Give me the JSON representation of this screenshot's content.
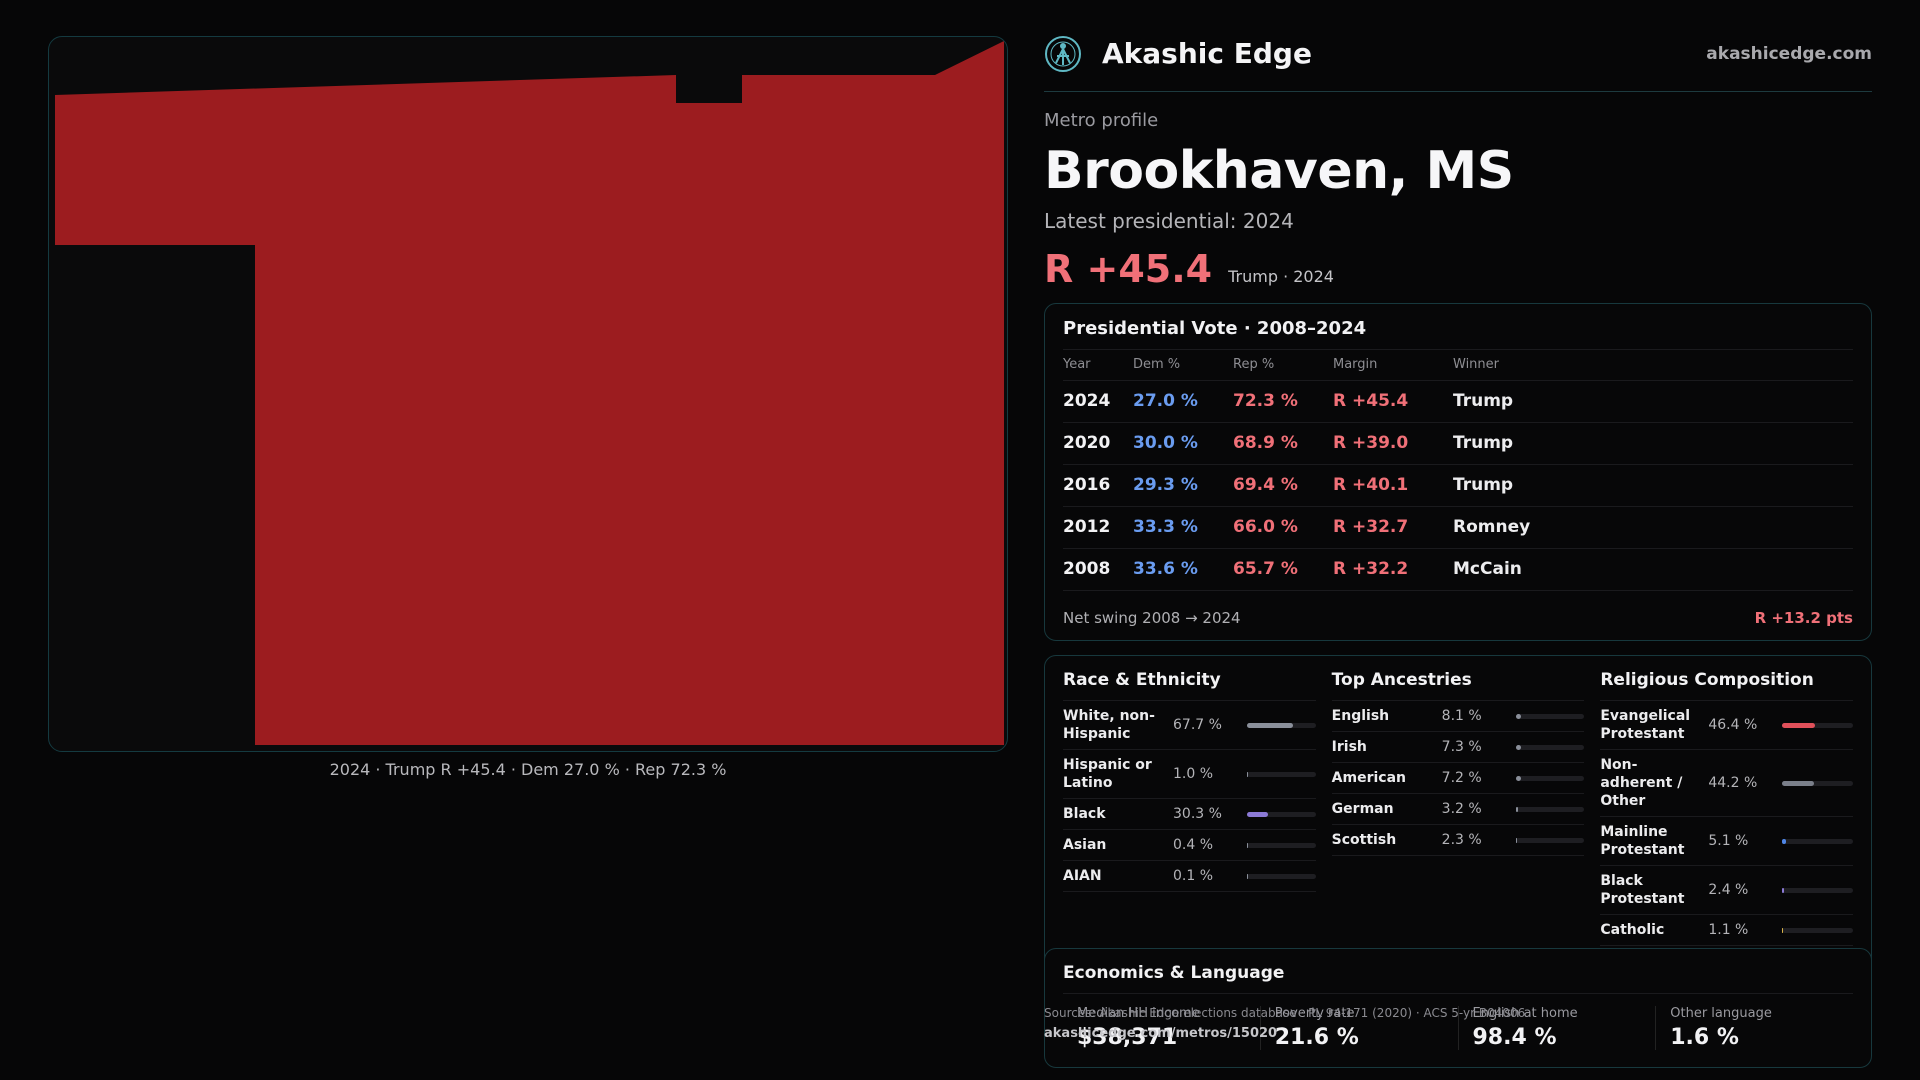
{
  "brand": {
    "name": "Akashic Edge",
    "site": "akashicedge.com"
  },
  "profile": {
    "eyebrow": "Metro profile",
    "title": "Brookhaven, MS",
    "latest_label": "Latest presidential: 2024",
    "margin": "R +45.4",
    "margin_sub": "Trump · 2024"
  },
  "map": {
    "caption": "2024 · Trump R +45.4 · Dem 27.0 % · Rep 72.3 %",
    "fill_color": "#9c1c1f"
  },
  "presidential": {
    "title": "Presidential Vote · 2008–2024",
    "headers": [
      "Year",
      "Dem %",
      "Rep %",
      "Margin",
      "Winner"
    ],
    "rows": [
      {
        "year": "2024",
        "dem": "27.0 %",
        "rep": "72.3 %",
        "margin": "R +45.4",
        "winner": "Trump"
      },
      {
        "year": "2020",
        "dem": "30.0 %",
        "rep": "68.9 %",
        "margin": "R +39.0",
        "winner": "Trump"
      },
      {
        "year": "2016",
        "dem": "29.3 %",
        "rep": "69.4 %",
        "margin": "R +40.1",
        "winner": "Trump"
      },
      {
        "year": "2012",
        "dem": "33.3 %",
        "rep": "66.0 %",
        "margin": "R +32.7",
        "winner": "Romney"
      },
      {
        "year": "2008",
        "dem": "33.6 %",
        "rep": "65.7 %",
        "margin": "R +32.2",
        "winner": "McCain"
      }
    ],
    "swing_label": "Net swing 2008 → 2024",
    "swing_value": "R +13.2 pts"
  },
  "race": {
    "title": "Race & Ethnicity",
    "items": [
      {
        "label": "White, non-Hispanic",
        "pct": "67.7 %",
        "value": 67.7,
        "color": "#8a8f9a"
      },
      {
        "label": "Hispanic or Latino",
        "pct": "1.0 %",
        "value": 1.0,
        "color": "#8a8f9a"
      },
      {
        "label": "Black",
        "pct": "30.3 %",
        "value": 30.3,
        "color": "#8c7ad6"
      },
      {
        "label": "Asian",
        "pct": "0.4 %",
        "value": 0.4,
        "color": "#8a8f9a"
      },
      {
        "label": "AIAN",
        "pct": "0.1 %",
        "value": 0.1,
        "color": "#8a8f9a"
      }
    ]
  },
  "ancestry": {
    "title": "Top Ancestries",
    "items": [
      {
        "label": "English",
        "pct": "8.1 %",
        "value": 8.1,
        "color": "#8a8f9a"
      },
      {
        "label": "Irish",
        "pct": "7.3 %",
        "value": 7.3,
        "color": "#8a8f9a"
      },
      {
        "label": "American",
        "pct": "7.2 %",
        "value": 7.2,
        "color": "#8a8f9a"
      },
      {
        "label": "German",
        "pct": "3.2 %",
        "value": 3.2,
        "color": "#8a8f9a"
      },
      {
        "label": "Scottish",
        "pct": "2.3 %",
        "value": 2.3,
        "color": "#8a8f9a"
      }
    ]
  },
  "religion": {
    "title": "Religious Composition",
    "items": [
      {
        "label": "Evangelical Protestant",
        "pct": "46.4 %",
        "value": 46.4,
        "color": "#e0505a"
      },
      {
        "label": "Non-adherent / Other",
        "pct": "44.2 %",
        "value": 44.2,
        "color": "#7a7f8a"
      },
      {
        "label": "Mainline Protestant",
        "pct": "5.1 %",
        "value": 5.1,
        "color": "#4f86e6"
      },
      {
        "label": "Black Protestant",
        "pct": "2.4 %",
        "value": 2.4,
        "color": "#8c7ad6"
      },
      {
        "label": "Catholic",
        "pct": "1.1 %",
        "value": 1.1,
        "color": "#d9b44a"
      }
    ]
  },
  "economics": {
    "title": "Economics & Language",
    "stats": [
      {
        "label": "Median HH income",
        "value": "$38,371"
      },
      {
        "label": "Poverty rate",
        "value": "21.6 %"
      },
      {
        "label": "English at home",
        "value": "98.4 %"
      },
      {
        "label": "Other language",
        "value": "1.6 %"
      }
    ]
  },
  "footer": {
    "sources": "Sources: Akashic Edge elections database · PL 94-171 (2020) · ACS 5-yr B04006",
    "url": "akashicedge.com/metros/15020"
  }
}
